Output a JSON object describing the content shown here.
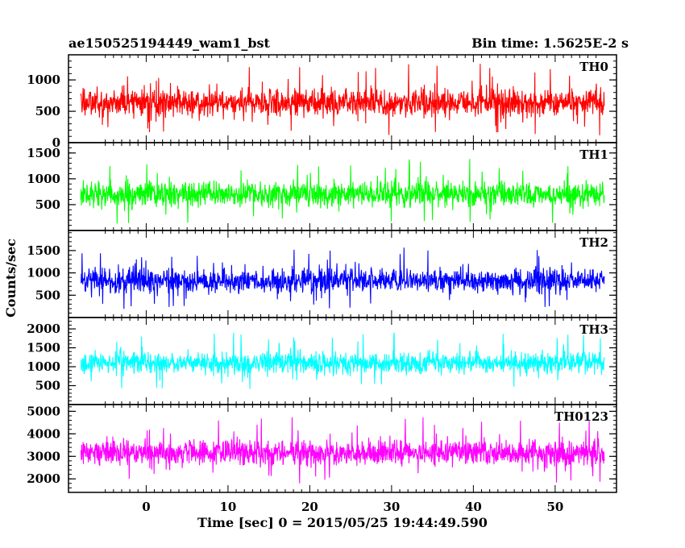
{
  "header": {
    "title_left": "ae150525194449_wam1_bst",
    "title_right": "Bin time: 1.5625E-2 s"
  },
  "chart_data": {
    "type": "line",
    "xlabel": "Time [sec] 0 = 2015/05/25 19:44:49.590",
    "ylabel": "Counts/sec",
    "xlim": [
      -9.5,
      57.5
    ],
    "x_range_data": [
      -8,
      56
    ],
    "x_ticks": [
      "0",
      "10",
      "20",
      "30",
      "40",
      "50"
    ],
    "x_tick_values": [
      0,
      10,
      20,
      30,
      40,
      50
    ],
    "bin_time": 0.015625,
    "panels": [
      {
        "name": "TH0",
        "color": "#ff0000",
        "ylim": [
          0,
          1400
        ],
        "yticks": [
          "0",
          "500",
          "1000"
        ],
        "ytick_values": [
          0,
          500,
          1000
        ],
        "mean": 640,
        "spread": 330,
        "low": 50,
        "high": 1400
      },
      {
        "name": "TH1",
        "color": "#00ff00",
        "ylim": [
          0,
          1700
        ],
        "yticks": [
          "500",
          "1000",
          "1500"
        ],
        "ytick_values": [
          500,
          1000,
          1500
        ],
        "mean": 700,
        "spread": 360,
        "low": 60,
        "high": 1650
      },
      {
        "name": "TH2",
        "color": "#0000ff",
        "ylim": [
          0,
          1950
        ],
        "yticks": [
          "500",
          "1000",
          "1500"
        ],
        "ytick_values": [
          500,
          1000,
          1500
        ],
        "mean": 820,
        "spread": 400,
        "low": 80,
        "high": 1950
      },
      {
        "name": "TH3",
        "color": "#00ffff",
        "ylim": [
          0,
          2300
        ],
        "yticks": [
          "500",
          "1000",
          "1500",
          "2000"
        ],
        "ytick_values": [
          500,
          1000,
          1500,
          2000
        ],
        "mean": 1100,
        "spread": 430,
        "low": 250,
        "high": 2250
      },
      {
        "name": "TH0123",
        "color": "#ff00ff",
        "ylim": [
          1400,
          5300
        ],
        "yticks": [
          "2000",
          "3000",
          "4000",
          "5000"
        ],
        "ytick_values": [
          2000,
          3000,
          4000,
          5000
        ],
        "mean": 3150,
        "spread": 850,
        "low": 1450,
        "high": 5300
      }
    ]
  }
}
